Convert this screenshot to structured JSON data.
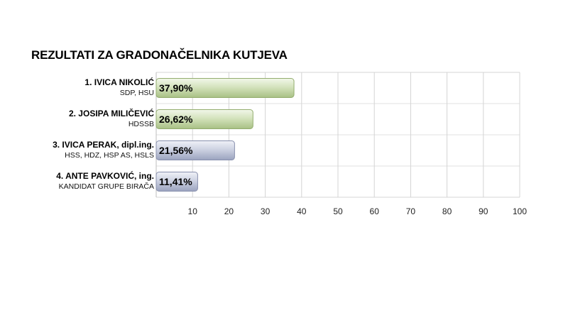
{
  "chart_data": {
    "type": "bar",
    "orientation": "horizontal",
    "title": "REZULTATI ZA GRADONAČELNIKA KUTJEVA",
    "xlim": [
      0,
      100
    ],
    "x_ticks": [
      "10",
      "20",
      "30",
      "40",
      "50",
      "60",
      "70",
      "80",
      "90",
      "100"
    ],
    "grid": "vertical",
    "categories": [
      {
        "name": "1. IVICA NIKOLIĆ",
        "party": "SDP, HSU",
        "value": 37.9,
        "label": "37,90%",
        "color": "green"
      },
      {
        "name": "2. JOSIPA MILIČEVIĆ",
        "party": "HDSSB",
        "value": 26.62,
        "label": "26,62%",
        "color": "green"
      },
      {
        "name": "3. IVICA PERAK, dipl.ing.",
        "party": "HSS, HDZ, HSP AS, HSLS",
        "value": 21.56,
        "label": "21,56%",
        "color": "blue"
      },
      {
        "name": "4. ANTE PAVKOVIĆ, ing.",
        "party": "KANDIDAT GRUPE BIRAČA",
        "value": 11.41,
        "label": "11,41%",
        "color": "blue"
      }
    ],
    "colors": {
      "green_light": "#e9f1dd",
      "green_dark": "#a8c084",
      "blue_light": "#e6e9f2",
      "blue_dark": "#9ba3bf",
      "grid": "#d4d4d4"
    }
  }
}
